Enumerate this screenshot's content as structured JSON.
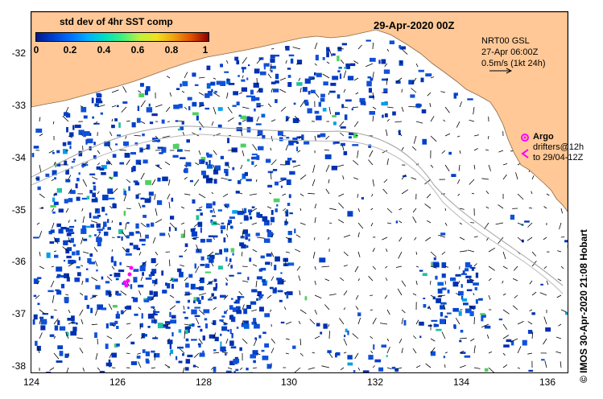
{
  "map": {
    "date": "29-Apr-2020 00Z",
    "lon_ticks": [
      "124",
      "126",
      "128",
      "130",
      "132",
      "134",
      "136"
    ],
    "lat_ticks": [
      "-32",
      "-33",
      "-34",
      "-35",
      "-36",
      "-37",
      "-38"
    ],
    "lon_range": [
      124,
      136.5
    ],
    "lat_range": [
      -38.1,
      -31.3
    ],
    "colors": {
      "land": "#ffc896",
      "ocean": "#ffffff",
      "sst_low": "#0030b0",
      "argo": "#ff00ff",
      "isobath": "#a0a0a0"
    }
  },
  "colorbar": {
    "title": "std dev of 4hr SST comp",
    "labels": [
      "0",
      "0.2",
      "0.4",
      "0.6",
      "0.8",
      "1"
    ]
  },
  "model_info": {
    "line1": "NRT00 GSL",
    "line2": "27-Apr 06:00Z",
    "line3": "0.5m/s (1kt 24h)"
  },
  "legend": {
    "argo": "Argo",
    "drifters_line1": "drifters@12h",
    "drifters_line2": "to 29/04-12Z",
    "argo_icon": "star-icon",
    "drifter_icon": "chevron-left-icon"
  },
  "credit": "© IMOS 30-Apr-2020 21:08 Hobart"
}
